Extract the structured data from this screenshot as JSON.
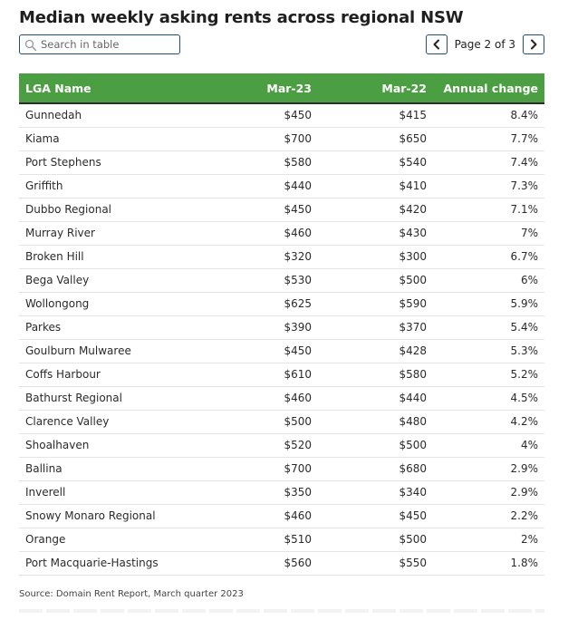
{
  "title": "Median weekly asking rents across regional NSW",
  "search": {
    "placeholder": "Search in table"
  },
  "pagination": {
    "label": "Page 2 of 3",
    "prev_icon": "chevron-left-icon",
    "next_icon": "chevron-right-icon"
  },
  "colors": {
    "header_bg": "#4b9e42",
    "header_text": "#ffffff",
    "accent_border": "#1f4e79"
  },
  "chart_data": {
    "type": "table",
    "columns": [
      "LGA Name",
      "Mar-23",
      "Mar-22",
      "Annual change"
    ],
    "rows": [
      [
        "Gunnedah",
        "$450",
        "$415",
        "8.4%"
      ],
      [
        "Kiama",
        "$700",
        "$650",
        "7.7%"
      ],
      [
        "Port Stephens",
        "$580",
        "$540",
        "7.4%"
      ],
      [
        "Griffith",
        "$440",
        "$410",
        "7.3%"
      ],
      [
        "Dubbo Regional",
        "$450",
        "$420",
        "7.1%"
      ],
      [
        "Murray River",
        "$460",
        "$430",
        "7%"
      ],
      [
        "Broken Hill",
        "$320",
        "$300",
        "6.7%"
      ],
      [
        "Bega Valley",
        "$530",
        "$500",
        "6%"
      ],
      [
        "Wollongong",
        "$625",
        "$590",
        "5.9%"
      ],
      [
        "Parkes",
        "$390",
        "$370",
        "5.4%"
      ],
      [
        "Goulburn Mulwaree",
        "$450",
        "$428",
        "5.3%"
      ],
      [
        "Coffs Harbour",
        "$610",
        "$580",
        "5.2%"
      ],
      [
        "Bathurst Regional",
        "$460",
        "$440",
        "4.5%"
      ],
      [
        "Clarence Valley",
        "$500",
        "$480",
        "4.2%"
      ],
      [
        "Shoalhaven",
        "$520",
        "$500",
        "4%"
      ],
      [
        "Ballina",
        "$700",
        "$680",
        "2.9%"
      ],
      [
        "Inverell",
        "$350",
        "$340",
        "2.9%"
      ],
      [
        "Snowy Monaro Regional",
        "$460",
        "$450",
        "2.2%"
      ],
      [
        "Orange",
        "$510",
        "$500",
        "2%"
      ],
      [
        "Port Macquarie-Hastings",
        "$560",
        "$550",
        "1.8%"
      ]
    ]
  },
  "source": "Source: Domain Rent Report, March quarter 2023"
}
